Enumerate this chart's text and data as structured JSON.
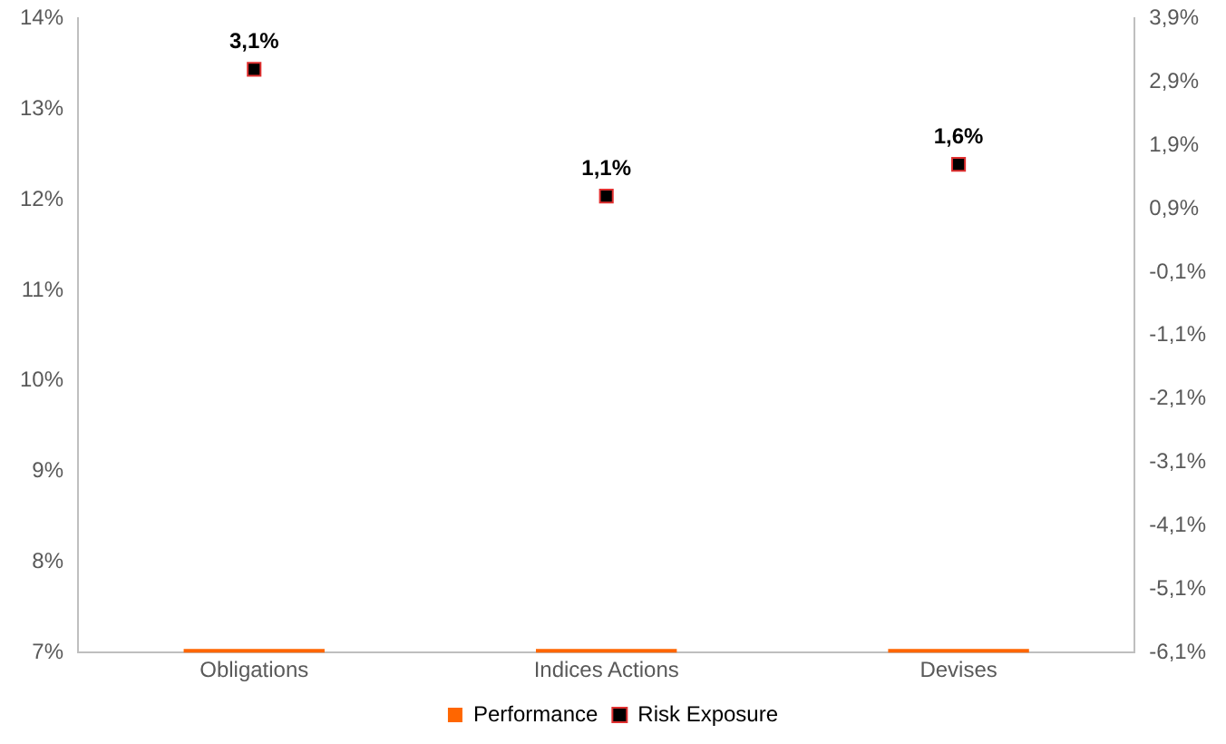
{
  "chart_data": {
    "type": "bar",
    "categories": [
      "Obligations",
      "Indices Actions",
      "Devises"
    ],
    "series": [
      {
        "name": "Performance",
        "color": "#ff6600",
        "values": [
          7.04,
          7.04,
          7.04
        ]
      },
      {
        "name": "Risk Exposure",
        "type": "scatter",
        "axis": "y2",
        "color": "#000000",
        "values": [
          3.1,
          1.1,
          1.6
        ],
        "value_labels": [
          "3,1%",
          "1,1%",
          "1,6%"
        ]
      }
    ],
    "ylim": [
      7,
      14
    ],
    "yticks": [
      {
        "value": 7,
        "label": "7%"
      },
      {
        "value": 8,
        "label": "8%"
      },
      {
        "value": 9,
        "label": "9%"
      },
      {
        "value": 10,
        "label": "10%"
      },
      {
        "value": 11,
        "label": "11%"
      },
      {
        "value": 12,
        "label": "12%"
      },
      {
        "value": 13,
        "label": "13%"
      },
      {
        "value": 14,
        "label": "14%"
      }
    ],
    "y2lim": [
      -6.1,
      3.9
    ],
    "y2ticks": [
      {
        "value": -6.1,
        "label": "-6,1%"
      },
      {
        "value": -5.1,
        "label": "-5,1%"
      },
      {
        "value": -4.1,
        "label": "-4,1%"
      },
      {
        "value": -3.1,
        "label": "-3,1%"
      },
      {
        "value": -2.1,
        "label": "-2,1%"
      },
      {
        "value": -1.1,
        "label": "-1,1%"
      },
      {
        "value": -0.1,
        "label": "-0,1%"
      },
      {
        "value": 0.9,
        "label": "0,9%"
      },
      {
        "value": 1.9,
        "label": "1,9%"
      },
      {
        "value": 2.9,
        "label": "2,9%"
      },
      {
        "value": 3.9,
        "label": "3,9%"
      }
    ],
    "marker": "square",
    "legend": "bottom",
    "grid": false
  }
}
